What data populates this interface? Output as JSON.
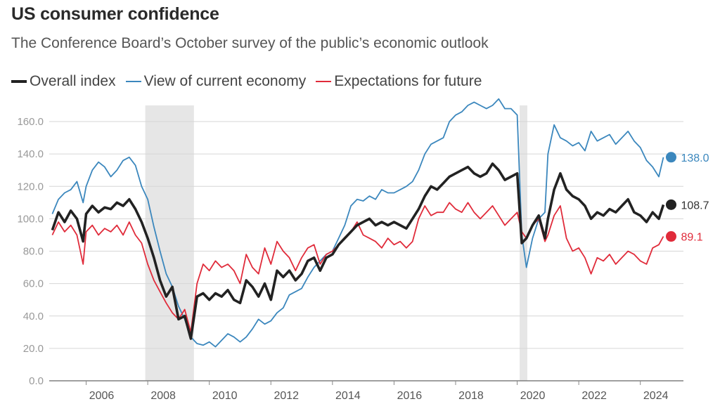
{
  "chart_data": {
    "type": "line",
    "title": "US consumer confidence",
    "subtitle": "The Conference Board’s October survey of the public’s economic outlook",
    "legend": [
      {
        "name": "Overall index",
        "color": "#222222"
      },
      {
        "name": "View of current economy",
        "color": "#3b87bd"
      },
      {
        "name": "Expectations for future",
        "color": "#e02b3a"
      }
    ],
    "ylim": [
      0,
      170
    ],
    "yticks": [
      "0.0",
      "20.0",
      "40.0",
      "60.0",
      "80.0",
      "100.0",
      "120.0",
      "140.0",
      "160.0"
    ],
    "xlim": [
      2004.8,
      2025.4
    ],
    "xticks": [
      "2006",
      "2008",
      "2010",
      "2012",
      "2014",
      "2016",
      "2018",
      "2020",
      "2022",
      "2024"
    ],
    "recessions": [
      [
        2007.92,
        2009.5
      ],
      [
        2020.08,
        2020.33
      ]
    ],
    "end_labels": [
      {
        "series": "View of current economy",
        "value": "138.0",
        "color": "#3b87bd"
      },
      {
        "series": "Overall index",
        "value": "108.7",
        "color": "#222222"
      },
      {
        "series": "Expectations for future",
        "value": "89.1",
        "color": "#e02b3a"
      }
    ],
    "series": [
      {
        "name": "View of current economy",
        "color": "#3b87bd",
        "x": [
          2004.9,
          2005.1,
          2005.3,
          2005.5,
          2005.7,
          2005.9,
          2006.0,
          2006.2,
          2006.4,
          2006.6,
          2006.8,
          2007.0,
          2007.2,
          2007.4,
          2007.6,
          2007.8,
          2008.0,
          2008.2,
          2008.4,
          2008.6,
          2008.8,
          2009.0,
          2009.2,
          2009.4,
          2009.6,
          2009.8,
          2010.0,
          2010.2,
          2010.4,
          2010.6,
          2010.8,
          2011.0,
          2011.2,
          2011.4,
          2011.6,
          2011.8,
          2012.0,
          2012.2,
          2012.4,
          2012.6,
          2012.8,
          2013.0,
          2013.2,
          2013.4,
          2013.6,
          2013.8,
          2014.0,
          2014.2,
          2014.4,
          2014.6,
          2014.8,
          2015.0,
          2015.2,
          2015.4,
          2015.6,
          2015.8,
          2016.0,
          2016.2,
          2016.4,
          2016.6,
          2016.8,
          2017.0,
          2017.2,
          2017.4,
          2017.6,
          2017.8,
          2018.0,
          2018.2,
          2018.4,
          2018.6,
          2018.8,
          2019.0,
          2019.2,
          2019.4,
          2019.6,
          2019.8,
          2020.0,
          2020.15,
          2020.3,
          2020.5,
          2020.7,
          2020.9,
          2021.0,
          2021.2,
          2021.4,
          2021.6,
          2021.8,
          2022.0,
          2022.2,
          2022.4,
          2022.6,
          2022.8,
          2023.0,
          2023.2,
          2023.4,
          2023.6,
          2023.8,
          2024.0,
          2024.2,
          2024.4,
          2024.6,
          2024.75
        ],
        "values": [
          103,
          112,
          116,
          118,
          123,
          110,
          120,
          130,
          135,
          132,
          126,
          130,
          136,
          138,
          133,
          120,
          112,
          95,
          80,
          66,
          58,
          46,
          38,
          27,
          23,
          22,
          24,
          21,
          25,
          29,
          27,
          24,
          27,
          32,
          38,
          35,
          37,
          42,
          45,
          53,
          55,
          57,
          64,
          70,
          74,
          78,
          80,
          88,
          96,
          108,
          112,
          111,
          114,
          112,
          118,
          116,
          116,
          118,
          120,
          123,
          130,
          140,
          146,
          148,
          150,
          160,
          164,
          166,
          170,
          172,
          170,
          168,
          170,
          174,
          168,
          168,
          164,
          90,
          70,
          88,
          100,
          104,
          140,
          158,
          150,
          148,
          145,
          147,
          142,
          154,
          148,
          150,
          152,
          146,
          150,
          154,
          148,
          144,
          136,
          132,
          126,
          138
        ]
      },
      {
        "name": "Expectations for future",
        "color": "#e02b3a",
        "x": [
          2004.9,
          2005.1,
          2005.3,
          2005.5,
          2005.7,
          2005.9,
          2006.0,
          2006.2,
          2006.4,
          2006.6,
          2006.8,
          2007.0,
          2007.2,
          2007.4,
          2007.6,
          2007.8,
          2008.0,
          2008.2,
          2008.4,
          2008.6,
          2008.8,
          2009.0,
          2009.2,
          2009.4,
          2009.6,
          2009.8,
          2010.0,
          2010.2,
          2010.4,
          2010.6,
          2010.8,
          2011.0,
          2011.2,
          2011.4,
          2011.6,
          2011.8,
          2012.0,
          2012.2,
          2012.4,
          2012.6,
          2012.8,
          2013.0,
          2013.2,
          2013.4,
          2013.6,
          2013.8,
          2014.0,
          2014.2,
          2014.4,
          2014.6,
          2014.8,
          2015.0,
          2015.2,
          2015.4,
          2015.6,
          2015.8,
          2016.0,
          2016.2,
          2016.4,
          2016.6,
          2016.8,
          2017.0,
          2017.2,
          2017.4,
          2017.6,
          2017.8,
          2018.0,
          2018.2,
          2018.4,
          2018.6,
          2018.8,
          2019.0,
          2019.2,
          2019.4,
          2019.6,
          2019.8,
          2020.0,
          2020.15,
          2020.3,
          2020.5,
          2020.7,
          2020.9,
          2021.0,
          2021.2,
          2021.4,
          2021.6,
          2021.8,
          2022.0,
          2022.2,
          2022.4,
          2022.6,
          2022.8,
          2023.0,
          2023.2,
          2023.4,
          2023.6,
          2023.8,
          2024.0,
          2024.2,
          2024.4,
          2024.6,
          2024.75
        ],
        "values": [
          90,
          98,
          92,
          96,
          90,
          72,
          92,
          96,
          90,
          94,
          92,
          96,
          90,
          98,
          90,
          85,
          72,
          62,
          55,
          48,
          42,
          38,
          44,
          30,
          60,
          72,
          68,
          74,
          70,
          72,
          68,
          60,
          78,
          70,
          66,
          82,
          72,
          86,
          80,
          76,
          68,
          76,
          82,
          84,
          72,
          78,
          80,
          84,
          88,
          92,
          98,
          90,
          88,
          86,
          82,
          88,
          84,
          86,
          82,
          86,
          100,
          108,
          102,
          104,
          104,
          110,
          106,
          104,
          110,
          104,
          100,
          104,
          108,
          102,
          96,
          100,
          104,
          92,
          88,
          96,
          100,
          86,
          90,
          102,
          108,
          88,
          80,
          82,
          76,
          66,
          76,
          74,
          78,
          72,
          76,
          80,
          78,
          74,
          72,
          82,
          84,
          89.1
        ]
      },
      {
        "name": "Overall index",
        "color": "#222222",
        "x": [
          2004.9,
          2005.1,
          2005.3,
          2005.5,
          2005.7,
          2005.9,
          2006.0,
          2006.2,
          2006.4,
          2006.6,
          2006.8,
          2007.0,
          2007.2,
          2007.4,
          2007.6,
          2007.8,
          2008.0,
          2008.2,
          2008.4,
          2008.6,
          2008.8,
          2009.0,
          2009.2,
          2009.4,
          2009.6,
          2009.8,
          2010.0,
          2010.2,
          2010.4,
          2010.6,
          2010.8,
          2011.0,
          2011.2,
          2011.4,
          2011.6,
          2011.8,
          2012.0,
          2012.2,
          2012.4,
          2012.6,
          2012.8,
          2013.0,
          2013.2,
          2013.4,
          2013.6,
          2013.8,
          2014.0,
          2014.2,
          2014.4,
          2014.6,
          2014.8,
          2015.0,
          2015.2,
          2015.4,
          2015.6,
          2015.8,
          2016.0,
          2016.2,
          2016.4,
          2016.6,
          2016.8,
          2017.0,
          2017.2,
          2017.4,
          2017.6,
          2017.8,
          2018.0,
          2018.2,
          2018.4,
          2018.6,
          2018.8,
          2019.0,
          2019.2,
          2019.4,
          2019.6,
          2019.8,
          2020.0,
          2020.15,
          2020.3,
          2020.5,
          2020.7,
          2020.9,
          2021.0,
          2021.2,
          2021.4,
          2021.6,
          2021.8,
          2022.0,
          2022.2,
          2022.4,
          2022.6,
          2022.8,
          2023.0,
          2023.2,
          2023.4,
          2023.6,
          2023.8,
          2024.0,
          2024.2,
          2024.4,
          2024.6,
          2024.75
        ],
        "values": [
          93,
          104,
          98,
          105,
          100,
          86,
          103,
          108,
          104,
          107,
          106,
          110,
          108,
          112,
          106,
          98,
          88,
          76,
          62,
          52,
          58,
          38,
          40,
          26,
          52,
          54,
          50,
          54,
          52,
          56,
          50,
          48,
          62,
          58,
          52,
          60,
          50,
          68,
          64,
          68,
          62,
          66,
          74,
          76,
          68,
          76,
          78,
          84,
          88,
          92,
          96,
          98,
          100,
          96,
          98,
          96,
          98,
          96,
          94,
          100,
          106,
          114,
          120,
          118,
          122,
          126,
          128,
          130,
          132,
          128,
          126,
          128,
          134,
          130,
          124,
          126,
          128,
          85,
          88,
          96,
          102,
          88,
          100,
          118,
          128,
          118,
          114,
          112,
          108,
          100,
          104,
          102,
          106,
          104,
          108,
          112,
          104,
          102,
          98,
          104,
          100,
          108.7
        ]
      }
    ]
  }
}
